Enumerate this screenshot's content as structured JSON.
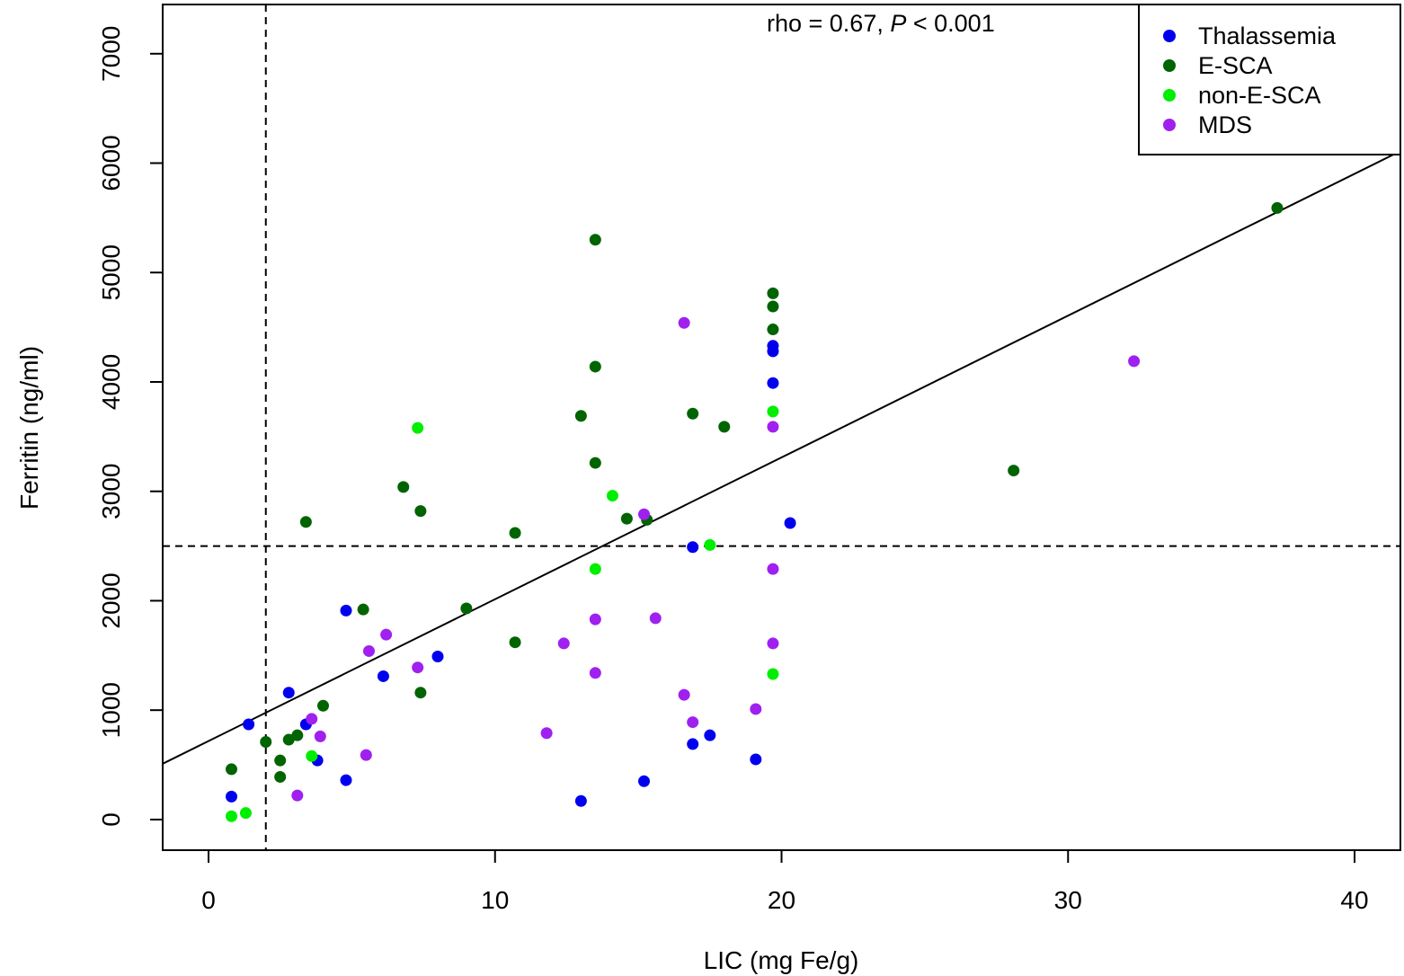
{
  "chart_data": {
    "type": "scatter",
    "title": "",
    "xlabel": "LIC (mg Fe/g)",
    "ylabel": "Ferritin (ng/ml)",
    "xlim": [
      -1.6,
      41.6
    ],
    "ylim": [
      -280,
      7450
    ],
    "x_ticks": [
      0,
      10,
      20,
      30,
      40
    ],
    "y_ticks": [
      0,
      1000,
      2000,
      3000,
      4000,
      5000,
      6000,
      7000
    ],
    "x_tick_labels": [
      "0",
      "10",
      "20",
      "30",
      "40"
    ],
    "y_tick_labels": [
      "0",
      "1000",
      "2000",
      "3000",
      "4000",
      "5000",
      "6000",
      "7000"
    ],
    "grid": false,
    "legend_position": "top-right",
    "annotation": {
      "prefix": "rho = 0.67, ",
      "p_symbol": "P",
      "suffix": " < 0.001"
    },
    "reference_lines": {
      "vertical_x": 2,
      "horizontal_y": 2500,
      "style": "dashed"
    },
    "regression_line": {
      "style": "solid",
      "points": [
        [
          -1.6,
          510
        ],
        [
          41.6,
          6110
        ]
      ]
    },
    "series": [
      {
        "name": "Thalassemia",
        "color": "#0000ee",
        "points": [
          [
            0.8,
            210
          ],
          [
            1.4,
            870
          ],
          [
            2.8,
            1160
          ],
          [
            3.4,
            870
          ],
          [
            3.8,
            540
          ],
          [
            4.8,
            1910
          ],
          [
            4.8,
            360
          ],
          [
            6.1,
            1310
          ],
          [
            8.0,
            1490
          ],
          [
            13.0,
            170
          ],
          [
            15.2,
            350
          ],
          [
            16.9,
            2490
          ],
          [
            16.9,
            690
          ],
          [
            17.5,
            770
          ],
          [
            19.1,
            550
          ],
          [
            19.7,
            4330
          ],
          [
            19.7,
            4280
          ],
          [
            19.7,
            3990
          ],
          [
            20.3,
            2710
          ]
        ]
      },
      {
        "name": "E-SCA",
        "color": "#006400",
        "points": [
          [
            0.8,
            460
          ],
          [
            2.0,
            710
          ],
          [
            2.5,
            540
          ],
          [
            2.5,
            390
          ],
          [
            2.8,
            730
          ],
          [
            3.1,
            770
          ],
          [
            3.4,
            2720
          ],
          [
            4.0,
            1040
          ],
          [
            5.4,
            1920
          ],
          [
            6.8,
            3040
          ],
          [
            7.4,
            2820
          ],
          [
            7.4,
            1160
          ],
          [
            9.0,
            1930
          ],
          [
            10.7,
            2620
          ],
          [
            10.7,
            1620
          ],
          [
            13.0,
            3690
          ],
          [
            13.5,
            5300
          ],
          [
            13.5,
            4140
          ],
          [
            13.5,
            3260
          ],
          [
            14.6,
            2750
          ],
          [
            15.3,
            2740
          ],
          [
            16.9,
            3710
          ],
          [
            18.0,
            3590
          ],
          [
            19.7,
            4810
          ],
          [
            19.7,
            4690
          ],
          [
            19.7,
            4480
          ],
          [
            28.1,
            3190
          ],
          [
            37.3,
            5590
          ]
        ]
      },
      {
        "name": "non-E-SCA",
        "color": "#00ee00",
        "points": [
          [
            0.8,
            30
          ],
          [
            1.3,
            60
          ],
          [
            3.6,
            580
          ],
          [
            7.3,
            3580
          ],
          [
            13.5,
            2290
          ],
          [
            14.1,
            2960
          ],
          [
            17.5,
            2510
          ],
          [
            19.7,
            3730
          ],
          [
            19.7,
            1330
          ]
        ]
      },
      {
        "name": "MDS",
        "color": "#a020f0",
        "points": [
          [
            3.1,
            220
          ],
          [
            3.6,
            920
          ],
          [
            3.9,
            760
          ],
          [
            5.5,
            590
          ],
          [
            5.6,
            1540
          ],
          [
            6.2,
            1690
          ],
          [
            7.3,
            1390
          ],
          [
            11.8,
            790
          ],
          [
            12.4,
            1610
          ],
          [
            13.5,
            1830
          ],
          [
            13.5,
            1340
          ],
          [
            15.2,
            2790
          ],
          [
            15.6,
            1840
          ],
          [
            16.6,
            4540
          ],
          [
            16.6,
            1140
          ],
          [
            16.9,
            890
          ],
          [
            19.1,
            1010
          ],
          [
            19.7,
            3590
          ],
          [
            19.7,
            2290
          ],
          [
            19.7,
            1610
          ],
          [
            32.3,
            4190
          ]
        ]
      }
    ]
  }
}
